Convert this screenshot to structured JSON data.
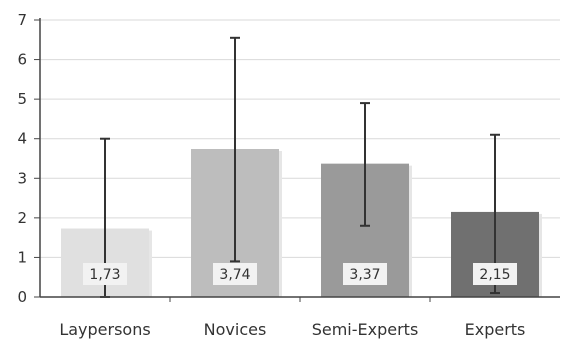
{
  "chart_data": {
    "type": "bar",
    "categories": [
      "Laypersons",
      "Novices",
      "Semi-Experts",
      "Experts"
    ],
    "values": [
      1.73,
      3.74,
      3.37,
      2.15
    ],
    "value_labels": [
      "1,73",
      "3,74",
      "3,37",
      "2,15"
    ],
    "error_bars": {
      "upper": [
        4.0,
        6.55,
        4.9,
        4.1
      ],
      "lower": [
        0.0,
        0.9,
        1.8,
        0.1
      ]
    },
    "ylim": [
      0,
      7
    ],
    "yticks": [
      "0",
      "1",
      "2",
      "3",
      "4",
      "5",
      "6",
      "7"
    ],
    "grid": true,
    "bar_colors": [
      "#e0e0e0",
      "#bdbdbd",
      "#9a9a9a",
      "#707070"
    ],
    "error_bar_color": "#333333",
    "grid_color": "#d9d9d9",
    "axis_color": "#444444"
  }
}
